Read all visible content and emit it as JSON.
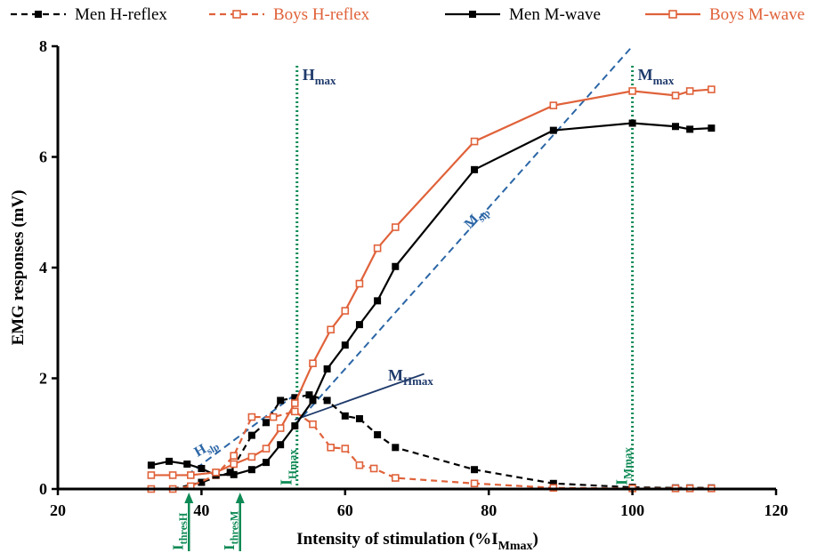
{
  "chart_data": {
    "type": "line",
    "xlabel_main": "Intensity of stimulation (%I",
    "xlabel_sub": "Mmax",
    "xlabel_close": ")",
    "ylabel": "EMG responses (mV)",
    "xlim": [
      20,
      120
    ],
    "ylim": [
      0,
      8
    ],
    "x_ticks": [
      "20",
      "40",
      "60",
      "80",
      "100",
      "120"
    ],
    "y_ticks": [
      "0",
      "2",
      "4",
      "6",
      "8"
    ],
    "colors": {
      "men": "#000000",
      "boys": "#E0623A",
      "fit": "#2B66A6",
      "fit_dark": "#1F3A6B",
      "marker": "#0E8A55"
    },
    "series": [
      {
        "name": "Men H-reflex",
        "key": "men",
        "style": "dashed",
        "marker": "filled-square",
        "x": [
          33,
          36,
          40,
          44,
          47,
          49,
          51,
          53,
          55,
          57.5,
          60,
          62,
          64.5,
          67,
          78,
          89,
          100,
          106,
          108,
          111
        ],
        "y": [
          0.0,
          0.0,
          0.12,
          0.3,
          0.97,
          1.2,
          1.6,
          1.65,
          1.7,
          1.6,
          1.32,
          1.27,
          0.98,
          0.75,
          0.35,
          0.1,
          0.03,
          0.02,
          0.02,
          0.02
        ]
      },
      {
        "name": "Boys H-reflex",
        "key": "boys",
        "style": "dashed",
        "marker": "open-square",
        "x": [
          33,
          36,
          38.5,
          42,
          44.5,
          47,
          50,
          53,
          55.5,
          58,
          60,
          62,
          64,
          67,
          78,
          89,
          100,
          106,
          108,
          111
        ],
        "y": [
          0.0,
          0.0,
          0.05,
          0.25,
          0.6,
          1.3,
          1.3,
          1.4,
          1.17,
          0.75,
          0.73,
          0.43,
          0.37,
          0.2,
          0.1,
          0.02,
          0.01,
          0.01,
          0.01,
          0.01
        ]
      },
      {
        "name": "Men M-wave",
        "key": "men",
        "style": "solid",
        "marker": "filled-square",
        "x": [
          33,
          35.5,
          38,
          40,
          42,
          44.5,
          47,
          49,
          51,
          53,
          55.5,
          57.5,
          60,
          62,
          64.5,
          67,
          78,
          89,
          100,
          106,
          108,
          111
        ],
        "y": [
          0.43,
          0.5,
          0.45,
          0.37,
          0.25,
          0.26,
          0.35,
          0.48,
          0.8,
          1.14,
          1.6,
          2.17,
          2.6,
          2.97,
          3.4,
          4.02,
          5.77,
          6.48,
          6.61,
          6.55,
          6.5,
          6.52
        ],
        "label": "M",
        "label_sub": "Hmax"
      },
      {
        "name": "Boys M-wave",
        "key": "boys",
        "style": "solid",
        "marker": "open-square",
        "x": [
          33,
          36,
          38.5,
          42,
          44.5,
          47,
          49,
          51,
          53,
          55.5,
          58,
          60,
          62,
          64.5,
          67,
          78,
          89,
          100,
          106,
          108,
          111
        ],
        "y": [
          0.25,
          0.25,
          0.25,
          0.3,
          0.45,
          0.58,
          0.73,
          1.1,
          1.55,
          2.27,
          2.88,
          3.22,
          3.71,
          4.35,
          4.73,
          6.28,
          6.93,
          7.19,
          7.11,
          7.19,
          7.22
        ]
      }
    ],
    "fit_lines": [
      {
        "name": "M_slp",
        "label": "M",
        "label_sub": "slp",
        "style": "dashed",
        "x": [
          53,
          100
        ],
        "y": [
          1.15,
          8.0
        ]
      },
      {
        "name": "H_slp",
        "label": "H",
        "label_sub": "slp",
        "style": "dashed",
        "x": [
          38,
          54
        ],
        "y": [
          0.25,
          1.8
        ]
      },
      {
        "name": "MHmax",
        "label": "M",
        "label_sub": "Hmax",
        "style": "solid",
        "x": [
          53,
          71
        ],
        "y": [
          1.25,
          2.08
        ]
      }
    ],
    "vlines": [
      {
        "name": "Hmax",
        "x": 53.3,
        "label": "H",
        "label_sub": "max",
        "sublabel": "I",
        "sublabel_sub": "Hmax"
      },
      {
        "name": "Mmax",
        "x": 100,
        "label": "M",
        "label_sub": "max",
        "sublabel": "I",
        "sublabel_sub": "Mmax"
      }
    ],
    "threshold_arrows": [
      {
        "name": "ithreshH",
        "x": 38,
        "label": "I",
        "label_sub": "thresH"
      },
      {
        "name": "ithreshM",
        "x": 45,
        "label": "I",
        "label_sub": "thresM"
      }
    ],
    "legend": [
      {
        "name": "Men H-reflex",
        "key": "men",
        "style": "dashed",
        "marker": "filled-square"
      },
      {
        "name": "Boys H-reflex",
        "key": "boys",
        "style": "dashed",
        "marker": "open-square"
      },
      {
        "name": "Men M-wave",
        "key": "men",
        "style": "solid",
        "marker": "filled-square"
      },
      {
        "name": "Boys M-wave",
        "key": "boys",
        "style": "solid",
        "marker": "open-square"
      }
    ]
  }
}
